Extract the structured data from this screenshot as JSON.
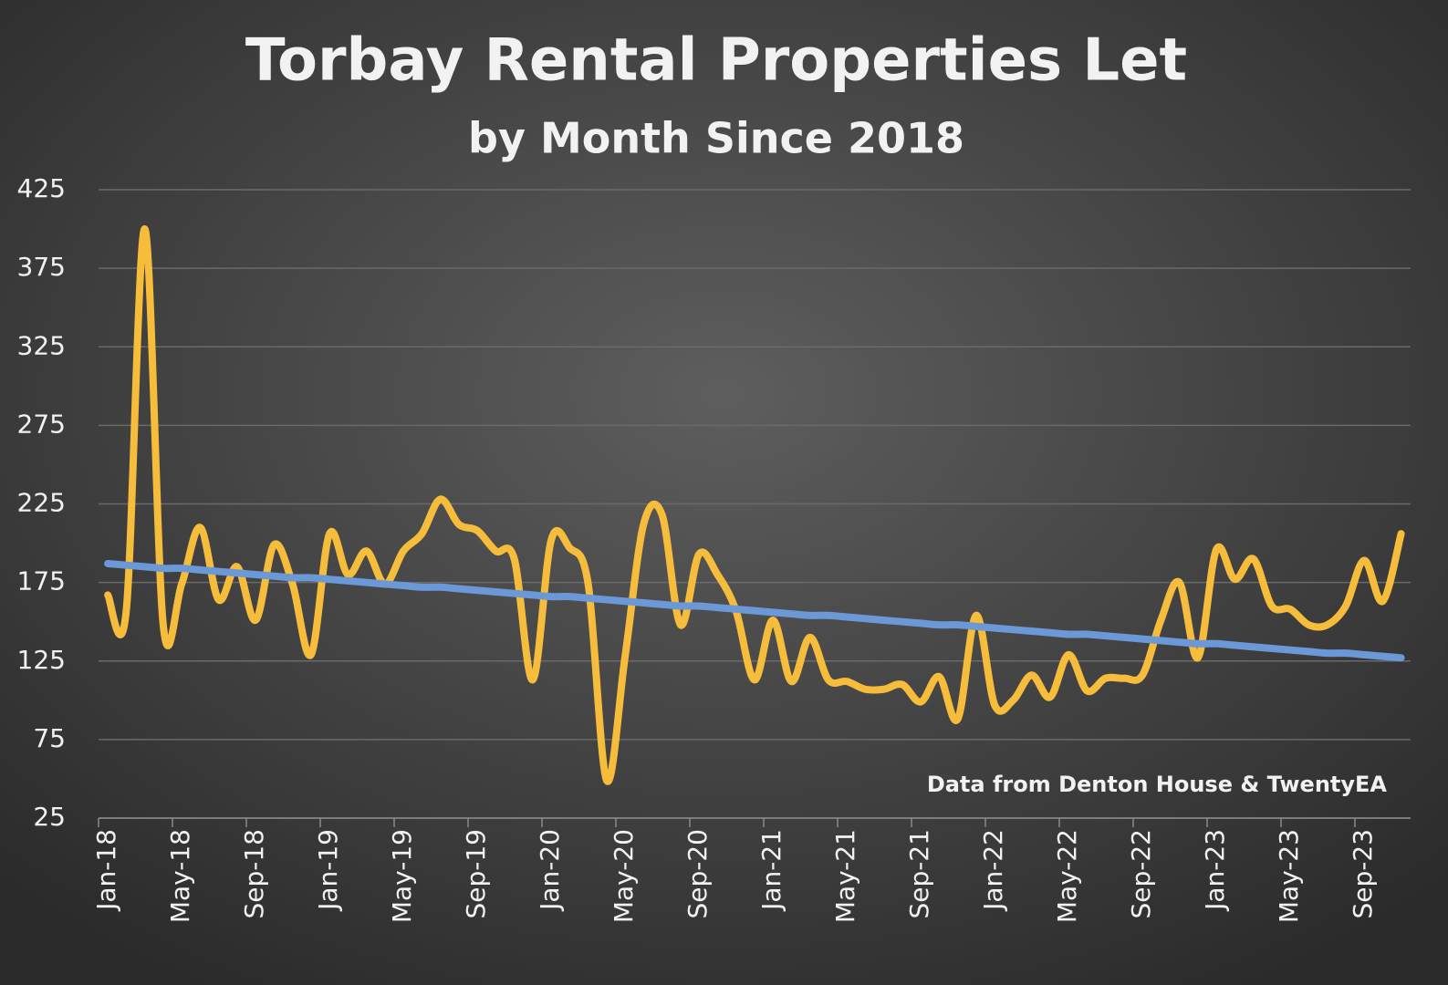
{
  "chart_data": {
    "type": "line",
    "title": "Torbay Rental Properties Let",
    "subtitle": "by Month Since 2018",
    "annotation": "Data from Denton House & TwentyEA",
    "smooth": true,
    "grid": true,
    "categories": [
      "Jan-18",
      null,
      null,
      null,
      "May-18",
      null,
      null,
      null,
      "Sep-18",
      null,
      null,
      null,
      "Jan-19",
      null,
      null,
      null,
      "May-19",
      null,
      null,
      null,
      "Sep-19",
      null,
      null,
      null,
      "Jan-20",
      null,
      null,
      null,
      "May-20",
      null,
      null,
      null,
      "Sep-20",
      null,
      null,
      null,
      "Jan-21",
      null,
      null,
      null,
      "May-21",
      null,
      null,
      null,
      "Sep-21",
      null,
      null,
      null,
      "Jan-22",
      null,
      null,
      null,
      "May-22",
      null,
      null,
      null,
      "Sep-22",
      null,
      null,
      null,
      "Jan-23",
      null,
      null,
      null,
      "May-23",
      null,
      null,
      null,
      "Sep-23",
      null,
      null
    ],
    "series": [
      {
        "color": "#f6bd3c",
        "values": [
          167,
          157,
          400,
          148,
          174,
          210,
          164,
          185,
          151,
          199,
          174,
          129,
          206,
          180,
          195,
          174,
          195,
          206,
          228,
          212,
          208,
          195,
          190,
          113,
          202,
          197,
          174,
          49,
          128,
          212,
          218,
          148,
          193,
          180,
          157,
          113,
          151,
          112,
          140,
          113,
          112,
          107,
          107,
          110,
          99,
          115,
          88,
          154,
          97,
          100,
          116,
          102,
          129,
          106,
          114,
          114,
          116,
          151,
          175,
          127,
          196,
          177,
          190,
          160,
          158,
          148,
          148,
          160,
          189,
          163,
          206
        ]
      },
      {
        "color": "#6b98d6",
        "values": [
          187,
          186,
          185,
          184,
          184,
          183,
          182,
          181,
          180,
          179,
          178,
          178,
          177,
          176,
          175,
          174,
          173,
          172,
          172,
          171,
          170,
          169,
          168,
          167,
          166,
          166,
          165,
          164,
          163,
          162,
          161,
          160,
          160,
          159,
          158,
          157,
          156,
          155,
          154,
          154,
          153,
          152,
          151,
          150,
          149,
          148,
          148,
          147,
          146,
          145,
          144,
          143,
          142,
          142,
          141,
          140,
          139,
          138,
          137,
          136,
          136,
          135,
          134,
          133,
          132,
          131,
          130,
          130,
          129,
          128,
          127
        ]
      }
    ],
    "ylim": [
      25,
      425
    ],
    "yticks": [
      25,
      75,
      125,
      175,
      225,
      275,
      325,
      375,
      425
    ]
  }
}
